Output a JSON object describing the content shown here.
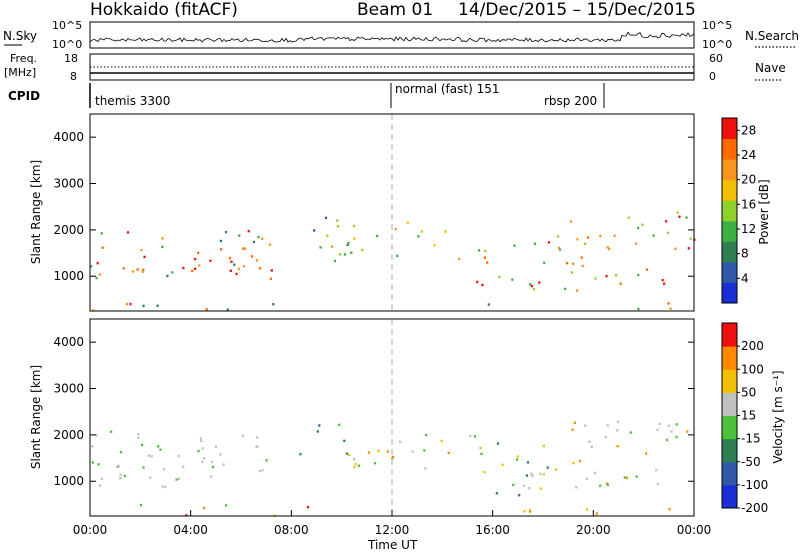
{
  "header": {
    "radar": "Hokkaido (fitACF)",
    "beam": "Beam 01",
    "date_range": "14/Dec/2015 – 15/Dec/2015"
  },
  "panels": {
    "nsky": {
      "label": "N.Sky",
      "ticks": [
        "10^5",
        "10^0"
      ],
      "right_label": "N.Search",
      "right_ticks": [
        "10^5",
        "10^0"
      ]
    },
    "freq": {
      "label_top": "Freq.",
      "label_unit": "[MHz]",
      "ticks": [
        "18",
        "8"
      ],
      "right_label": "Nave",
      "right_ticks": [
        "60",
        "0"
      ]
    },
    "cpid": {
      "label": "CPID",
      "segments": [
        {
          "text": "themis 3300",
          "start": "00:00"
        },
        {
          "text": "normal (fast) 151",
          "start": "12:00"
        },
        {
          "text": "rbsp 200",
          "start": "20:30"
        }
      ]
    }
  },
  "chart_data": [
    {
      "type": "heatmap",
      "name": "power",
      "ylabel": "Slant Range [km]",
      "y_ticks": [
        1000,
        2000,
        3000,
        4000
      ],
      "ylim": [
        250,
        4500
      ],
      "colorbar_label": "Power [dB]",
      "colorbar_ticks": [
        4,
        8,
        12,
        16,
        20,
        24,
        28
      ],
      "colorbar_range": [
        0,
        30
      ],
      "colors": [
        "#1a2fd6",
        "#2e5aa8",
        "#2f7f55",
        "#3cb043",
        "#8ed12c",
        "#f0c000",
        "#f7961e",
        "#ff6a00",
        "#ee1111"
      ]
    },
    {
      "type": "heatmap",
      "name": "velocity",
      "ylabel": "Slant Range [km]",
      "y_ticks": [
        1000,
        2000,
        3000,
        4000
      ],
      "ylim": [
        250,
        4500
      ],
      "colorbar_label": "Velocity [m s⁻¹]",
      "colorbar_ticks": [
        200,
        100,
        50,
        15,
        -15,
        -50,
        -100,
        -200
      ],
      "colors": [
        "#1a2fd6",
        "#2e5aa8",
        "#2f7f55",
        "#4cc23a",
        "#c0c0c0",
        "#f0c000",
        "#ff8800",
        "#ee1111"
      ]
    }
  ],
  "x_axis": {
    "ticks": [
      "00:00",
      "04:00",
      "08:00",
      "12:00",
      "16:00",
      "20:00",
      "00:00"
    ],
    "label": "Time UT",
    "range_hours": [
      0,
      24
    ]
  }
}
